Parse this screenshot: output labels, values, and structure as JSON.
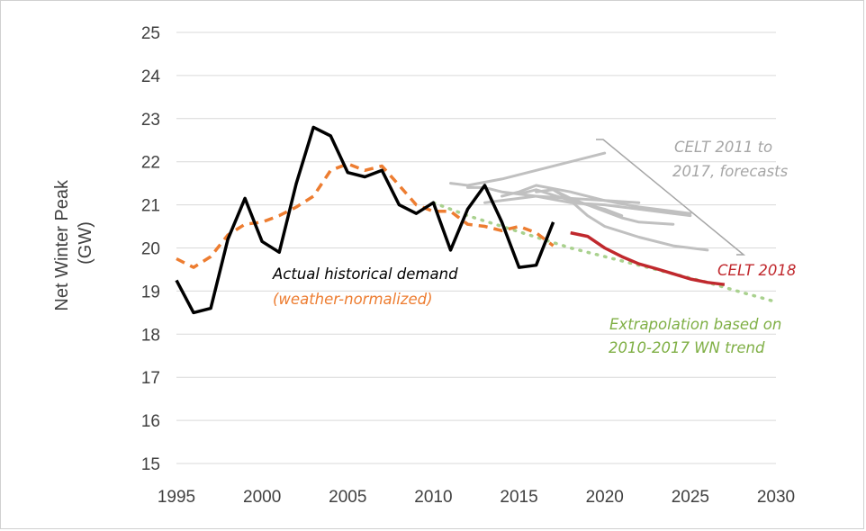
{
  "chart_data": {
    "type": "line",
    "ylabel_lines": [
      "Net Winter Peak",
      "(GW)"
    ],
    "xlim": [
      1995,
      2030
    ],
    "ylim": [
      15,
      25
    ],
    "xticks": [
      1995,
      2000,
      2005,
      2010,
      2015,
      2020,
      2025,
      2030
    ],
    "yticks": [
      15,
      16,
      17,
      18,
      19,
      20,
      21,
      22,
      23,
      24,
      25
    ],
    "grid": "horizontal",
    "colors": {
      "actual": "#000000",
      "weather_normalized": "#ED7D31",
      "celt_history": "#C0C0C0",
      "celt_2018": "#C0282D",
      "extrapolation": "#A9D18E"
    },
    "series": [
      {
        "key": "actual",
        "x": [
          1995,
          1996,
          1997,
          1998,
          1999,
          2000,
          2001,
          2002,
          2003,
          2004,
          2005,
          2006,
          2007,
          2008,
          2009,
          2010,
          2011,
          2012,
          2013,
          2014,
          2015,
          2016,
          2017
        ],
        "y": [
          19.25,
          18.5,
          18.6,
          20.2,
          21.15,
          20.15,
          19.9,
          21.5,
          22.8,
          22.6,
          21.75,
          21.65,
          21.8,
          21.0,
          20.8,
          21.05,
          19.95,
          20.9,
          21.45,
          20.6,
          19.55,
          19.6,
          20.6
        ]
      },
      {
        "key": "weather_normalized",
        "x": [
          1995,
          1996,
          1997,
          1998,
          1999,
          2000,
          2001,
          2002,
          2003,
          2004,
          2005,
          2006,
          2007,
          2008,
          2009,
          2010,
          2011,
          2012,
          2013,
          2014,
          2015,
          2016,
          2017
        ],
        "y": [
          19.75,
          19.55,
          19.8,
          20.3,
          20.55,
          20.6,
          20.75,
          20.95,
          21.2,
          21.8,
          21.95,
          21.8,
          21.9,
          21.45,
          21.0,
          20.85,
          20.85,
          20.55,
          20.5,
          20.4,
          20.5,
          20.35,
          20.05
        ]
      },
      {
        "key": "celt_2018",
        "x": [
          2018,
          2019,
          2020,
          2021,
          2022,
          2023,
          2024,
          2025,
          2026,
          2027
        ],
        "y": [
          20.35,
          20.27,
          20.0,
          19.8,
          19.63,
          19.52,
          19.4,
          19.28,
          19.2,
          19.15
        ]
      },
      {
        "key": "extrapolation",
        "x": [
          2010,
          2012,
          2014,
          2016,
          2018,
          2020,
          2022,
          2024,
          2026,
          2028,
          2030
        ],
        "y": [
          21.05,
          20.75,
          20.5,
          20.25,
          20.0,
          19.8,
          19.6,
          19.4,
          19.2,
          18.97,
          18.75
        ]
      }
    ],
    "celt_forecasts": [
      {
        "x": [
          2011,
          2012,
          2014,
          2016,
          2018,
          2020
        ],
        "y": [
          21.5,
          21.45,
          21.6,
          21.8,
          22.0,
          22.2
        ]
      },
      {
        "x": [
          2012,
          2013,
          2014,
          2016,
          2018,
          2020,
          2022
        ],
        "y": [
          21.4,
          21.4,
          21.3,
          21.2,
          21.15,
          21.1,
          21.05
        ]
      },
      {
        "x": [
          2013,
          2014,
          2016,
          2018,
          2020,
          2022,
          2024,
          2025
        ],
        "y": [
          21.05,
          21.1,
          21.2,
          21.05,
          21.0,
          20.9,
          20.8,
          20.75
        ]
      },
      {
        "x": [
          2014,
          2015,
          2016,
          2018,
          2020,
          2022,
          2024,
          2025
        ],
        "y": [
          21.2,
          21.3,
          21.45,
          21.3,
          21.1,
          20.95,
          20.85,
          20.8
        ]
      },
      {
        "x": [
          2015,
          2016,
          2018,
          2020,
          2021
        ],
        "y": [
          21.25,
          21.35,
          21.1,
          20.9,
          20.75
        ]
      },
      {
        "x": [
          2016,
          2017,
          2018,
          2019,
          2020,
          2022,
          2024,
          2026
        ],
        "y": [
          21.3,
          21.35,
          21.1,
          20.75,
          20.5,
          20.25,
          20.05,
          19.95
        ]
      },
      {
        "x": [
          2017,
          2018,
          2019,
          2020,
          2021,
          2022,
          2024
        ],
        "y": [
          21.35,
          21.15,
          21.0,
          20.85,
          20.7,
          20.6,
          20.55
        ]
      }
    ],
    "annotations": {
      "actual": "Actual historical demand",
      "weather_normalized": "(weather-normalized)",
      "celt_history_1": "CELT 2011 to",
      "celt_history_2": "2017, forecasts",
      "celt_2018": "CELT 2018",
      "extrapolation_1": "Extrapolation based on",
      "extrapolation_2": "2010-2017 WN trend"
    }
  }
}
